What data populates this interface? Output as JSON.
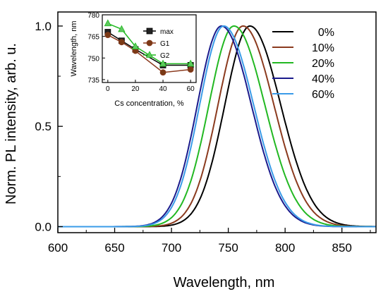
{
  "chart_data": [
    {
      "type": "line",
      "title": "",
      "xlabel": "Wavelength, nm",
      "ylabel": "Norm. PL intensity, arb. u.",
      "xlim": [
        600,
        880
      ],
      "ylim": [
        -0.03,
        1.07
      ],
      "xticks": [
        {
          "value": 600,
          "label": "600"
        },
        {
          "value": 650,
          "label": "650"
        },
        {
          "value": 700,
          "label": "700"
        },
        {
          "value": 750,
          "label": "750"
        },
        {
          "value": 800,
          "label": "800"
        },
        {
          "value": 850,
          "label": "850"
        }
      ],
      "yticks": [
        {
          "value": 0.0,
          "label": "0.0"
        },
        {
          "value": 0.5,
          "label": "0.5"
        },
        {
          "value": 1.0,
          "label": "1.0"
        }
      ],
      "legend_position": "top-right",
      "series": [
        {
          "name": "0%",
          "color": "#000000",
          "peak": 769,
          "fwhm_left": 52,
          "fwhm_right": 64
        },
        {
          "name": "10%",
          "color": "#8b3a1e",
          "peak": 763,
          "fwhm_left": 52,
          "fwhm_right": 64
        },
        {
          "name": "20%",
          "color": "#22b822",
          "peak": 755,
          "fwhm_left": 52,
          "fwhm_right": 64
        },
        {
          "name": "40%",
          "color": "#1a1a8c",
          "peak": 744,
          "fwhm_left": 50,
          "fwhm_right": 62
        },
        {
          "name": "60%",
          "color": "#3a9be8",
          "peak": 746,
          "fwhm_left": 50,
          "fwhm_right": 62
        }
      ]
    },
    {
      "type": "line",
      "title": "",
      "xlabel": "Cs concentration, %",
      "ylabel": "Wavelength, nm",
      "xlim": [
        -4,
        64
      ],
      "ylim": [
        733,
        780
      ],
      "xticks": [
        {
          "value": 0,
          "label": "0"
        },
        {
          "value": 20,
          "label": "20"
        },
        {
          "value": 40,
          "label": "40"
        },
        {
          "value": 60,
          "label": "60"
        }
      ],
      "yticks": [
        {
          "value": 735,
          "label": "735"
        },
        {
          "value": 750,
          "label": "750"
        },
        {
          "value": 765,
          "label": "765"
        },
        {
          "value": 780,
          "label": "780"
        }
      ],
      "legend_position": "top-right",
      "x": [
        0,
        10,
        20,
        40,
        60
      ],
      "series": [
        {
          "name": "max",
          "color": "#000000",
          "fill": "#222222",
          "marker": "square",
          "values": [
            768,
            762,
            756,
            745,
            745
          ]
        },
        {
          "name": "G1",
          "color": "#8b3a1e",
          "fill": "#7a3a16",
          "marker": "circle",
          "values": [
            766,
            761,
            755,
            740,
            742
          ]
        },
        {
          "name": "G2",
          "color": "#22b822",
          "fill": "#5ec95e",
          "marker": "triangle",
          "values": [
            774,
            770,
            758,
            746,
            746
          ]
        }
      ]
    }
  ]
}
